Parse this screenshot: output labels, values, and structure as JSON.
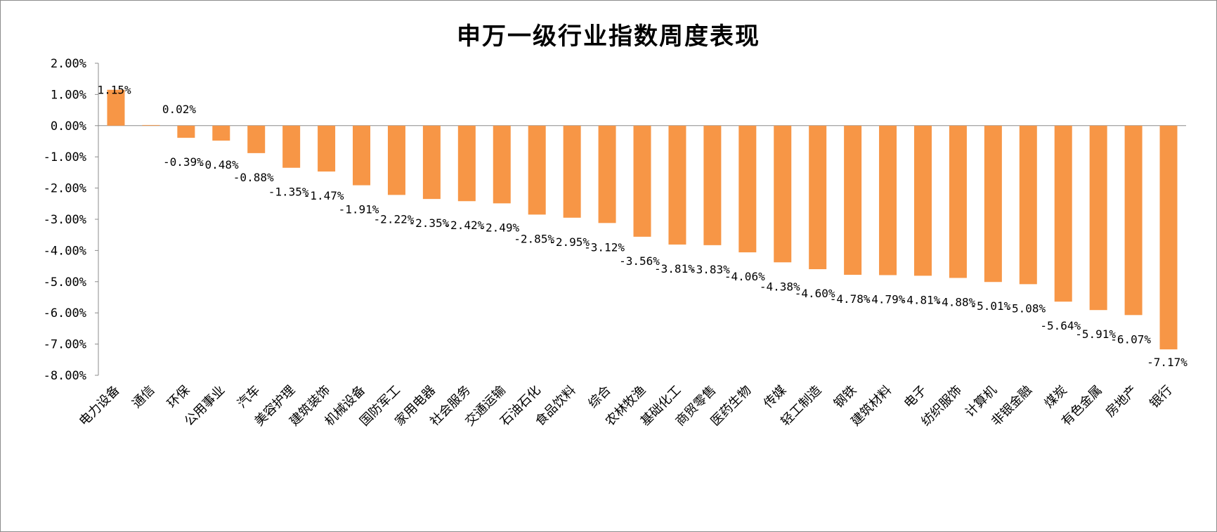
{
  "chart_data": {
    "type": "bar",
    "title": "申万一级行业指数周度表现",
    "xlabel": "",
    "ylabel": "",
    "ylim": [
      -8,
      2
    ],
    "ytick_values": [
      2,
      1,
      0,
      -1,
      -2,
      -3,
      -4,
      -5,
      -6,
      -7,
      -8
    ],
    "ytick_labels": [
      "2.00%",
      "1.00%",
      "0.00%",
      "-1.00%",
      "-2.00%",
      "-3.00%",
      "-4.00%",
      "-5.00%",
      "-6.00%",
      "-7.00%",
      "-8.00%"
    ],
    "grid": false,
    "bar_color": "#F79646",
    "categories": [
      "电力设备",
      "通信",
      "环保",
      "公用事业",
      "汽车",
      "美容护理",
      "建筑装饰",
      "机械设备",
      "国防军工",
      "家用电器",
      "社会服务",
      "交通运输",
      "石油石化",
      "食品饮料",
      "综合",
      "农林牧渔",
      "基础化工",
      "商贸零售",
      "医药生物",
      "传媒",
      "轻工制造",
      "钢铁",
      "建筑材料",
      "电子",
      "纺织服饰",
      "计算机",
      "非银金融",
      "煤炭",
      "有色金属",
      "房地产",
      "银行"
    ],
    "values": [
      1.15,
      0.02,
      -0.39,
      -0.48,
      -0.88,
      -1.35,
      -1.47,
      -1.91,
      -2.22,
      -2.35,
      -2.42,
      -2.49,
      -2.85,
      -2.95,
      -3.12,
      -3.56,
      -3.81,
      -3.83,
      -4.06,
      -4.38,
      -4.6,
      -4.78,
      -4.79,
      -4.81,
      -4.88,
      -5.01,
      -5.08,
      -5.64,
      -5.91,
      -6.07,
      -7.17
    ],
    "data_labels": [
      "1.15%",
      "0.02%",
      "-0.39%",
      "-0.48%",
      "-0.88%",
      "-1.35%",
      "-1.47%",
      "-1.91%",
      "-2.22%",
      "-2.35%",
      "-2.42%",
      "-2.49%",
      "-2.85%",
      "-2.95%",
      "-3.12%",
      "-3.56%",
      "-3.81%",
      "-3.83%",
      "-4.06%",
      "-4.38%",
      "-4.60%",
      "-4.78%",
      "-4.79%",
      "-4.81%",
      "-4.88%",
      "-5.01%",
      "-5.08%",
      "-5.64%",
      "-5.91%",
      "-6.07%",
      "-7.17%"
    ]
  }
}
